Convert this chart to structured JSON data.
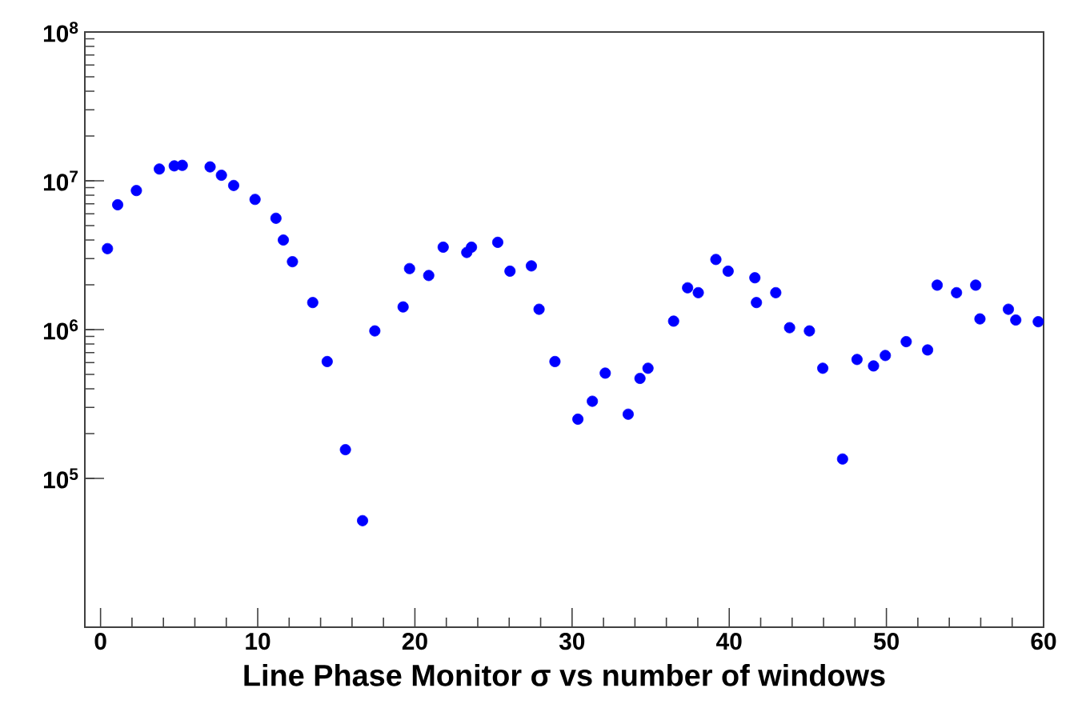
{
  "chart_data": {
    "type": "scatter",
    "xlabel": "Line Phase Monitor σ vs number of windows",
    "log": "y",
    "marker": "circle",
    "grid": false,
    "xlim": [
      -1,
      60
    ],
    "ylim": [
      10000,
      100000000
    ],
    "xticks": [
      0,
      10,
      20,
      30,
      40,
      50,
      60
    ],
    "yticks": [
      {
        "value": 100000,
        "label": "10$^{5}$"
      },
      {
        "value": 1000000,
        "label": "10$^{6}$"
      },
      {
        "value": 10000000,
        "label": "10$^{7}$"
      },
      {
        "value": 100000000,
        "label": "10$^{8}$"
      }
    ],
    "series": [
      {
        "color": "#0000ff",
        "x": [
          0.44,
          1.09,
          2.28,
          3.74,
          4.69,
          5.2,
          6.97,
          7.69,
          8.47,
          9.83,
          11.16,
          11.63,
          12.21,
          13.5,
          14.42,
          15.58,
          16.67,
          17.45,
          19.25,
          19.66,
          20.88,
          21.8,
          23.3,
          23.6,
          25.27,
          26.05,
          27.41,
          27.9,
          28.91,
          30.37,
          31.29,
          32.11,
          33.57,
          34.32,
          34.83,
          36.46,
          37.35,
          38.03,
          39.15,
          39.93,
          41.63,
          41.73,
          42.96,
          43.84,
          45.1,
          45.95,
          47.21,
          48.13,
          49.18,
          49.93,
          51.26,
          52.62,
          53.23,
          54.46,
          55.68,
          55.95,
          57.76,
          58.23,
          59.66
        ],
        "values": [
          3500000,
          6900000,
          8600000,
          12000000,
          12600000,
          12700000,
          12400000,
          10900000,
          9300000,
          7500000,
          5600000,
          4000000,
          2860000,
          1520000,
          610000,
          156000,
          52000,
          980000,
          1420000,
          2570000,
          2310000,
          3580000,
          3300000,
          3580000,
          3860000,
          2470000,
          2680000,
          1370000,
          610000,
          250000,
          330000,
          510000,
          270000,
          470000,
          550000,
          1140000,
          1910000,
          1770000,
          2960000,
          2470000,
          2230000,
          1520000,
          1770000,
          1030000,
          980000,
          550000,
          135000,
          630000,
          570000,
          670000,
          830000,
          730000,
          1990000,
          1770000,
          1990000,
          1180000,
          1370000,
          1160000,
          1130000
        ]
      }
    ]
  }
}
